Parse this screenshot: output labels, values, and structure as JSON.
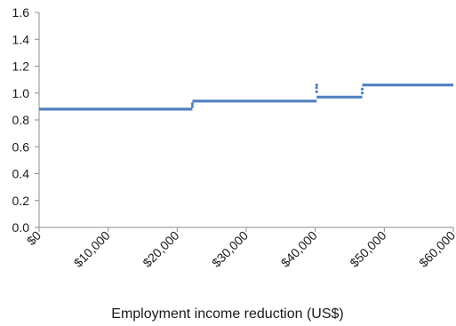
{
  "chart_data": {
    "type": "line",
    "title": "",
    "xlabel": "Employment income reduction (US$)",
    "ylabel": "",
    "xlim": [
      0,
      60000
    ],
    "ylim": [
      0,
      1.6
    ],
    "x_ticks": [
      {
        "value": 0,
        "label": "$0"
      },
      {
        "value": 10000,
        "label": "$10,000"
      },
      {
        "value": 20000,
        "label": "$20,000"
      },
      {
        "value": 30000,
        "label": "$30,000"
      },
      {
        "value": 40000,
        "label": "$40,000"
      },
      {
        "value": 50000,
        "label": "$50,000"
      },
      {
        "value": 60000,
        "label": "$60,000"
      }
    ],
    "y_ticks": [
      {
        "value": 0,
        "label": "0.0"
      },
      {
        "value": 0.2,
        "label": "0.2"
      },
      {
        "value": 0.4,
        "label": "0.4"
      },
      {
        "value": 0.6,
        "label": "0.6"
      },
      {
        "value": 0.8,
        "label": "0.8"
      },
      {
        "value": 1.0,
        "label": "1.0"
      },
      {
        "value": 1.2,
        "label": "1.2"
      },
      {
        "value": 1.4,
        "label": "1.4"
      },
      {
        "value": 1.6,
        "label": "1.6"
      }
    ],
    "grid": false,
    "legend": "none",
    "series_color": "#4f81bd",
    "series": [
      {
        "segments": [
          {
            "x": [
              0,
              22200
            ],
            "y": [
              0.88,
              0.88
            ]
          },
          {
            "x": [
              22200,
              40200
            ],
            "y": [
              0.94,
              0.94
            ]
          },
          {
            "x": [
              40200,
              46800
            ],
            "y": [
              0.97,
              0.97
            ]
          },
          {
            "x": [
              46800,
              60000
            ],
            "y": [
              1.06,
              1.06
            ]
          }
        ],
        "points": [
          {
            "x": 22200,
            "y": 0.9
          },
          {
            "x": 22200,
            "y": 0.92
          },
          {
            "x": 40200,
            "y": 1.06
          },
          {
            "x": 40200,
            "y": 1.04
          },
          {
            "x": 40200,
            "y": 1.01
          },
          {
            "x": 46800,
            "y": 1.0
          },
          {
            "x": 46800,
            "y": 1.03
          }
        ]
      }
    ]
  }
}
